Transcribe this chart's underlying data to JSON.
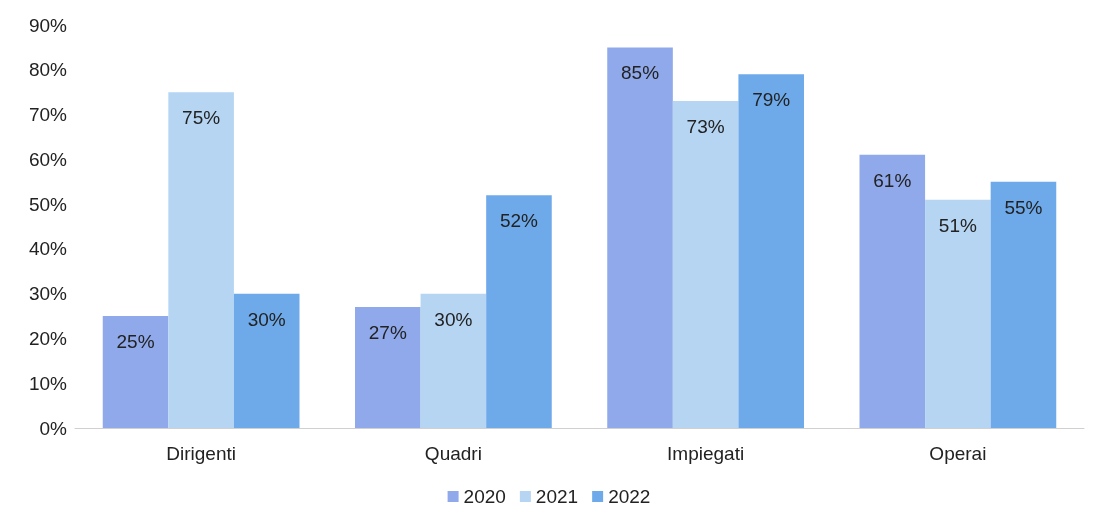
{
  "chart_data": {
    "type": "bar",
    "categories": [
      "Dirigenti",
      "Quadri",
      "Impiegati",
      "Operai"
    ],
    "series": [
      {
        "name": "2020",
        "color": "#8fa9ea",
        "values": [
          25,
          27,
          85,
          61
        ],
        "value_labels": [
          "25%",
          "27%",
          "85%",
          "61%"
        ]
      },
      {
        "name": "2021",
        "color": "#b5d5f3",
        "values": [
          75,
          30,
          73,
          51
        ],
        "value_labels": [
          "75%",
          "30%",
          "73%",
          "51%"
        ]
      },
      {
        "name": "2022",
        "color": "#6eaaea",
        "values": [
          30,
          52,
          79,
          55
        ],
        "value_labels": [
          "30%",
          "52%",
          "79%",
          "55%"
        ]
      }
    ],
    "ylim": [
      0,
      90
    ],
    "yticks": [
      {
        "value": 0,
        "label": "0%"
      },
      {
        "value": 10,
        "label": "10%"
      },
      {
        "value": 20,
        "label": "20%"
      },
      {
        "value": 30,
        "label": "30%"
      },
      {
        "value": 40,
        "label": "40%"
      },
      {
        "value": 50,
        "label": "50%"
      },
      {
        "value": 60,
        "label": "60%"
      },
      {
        "value": 70,
        "label": "70%"
      },
      {
        "value": 80,
        "label": "80%"
      },
      {
        "value": 90,
        "label": "90%"
      }
    ],
    "grid": false,
    "legend": "bottom"
  }
}
